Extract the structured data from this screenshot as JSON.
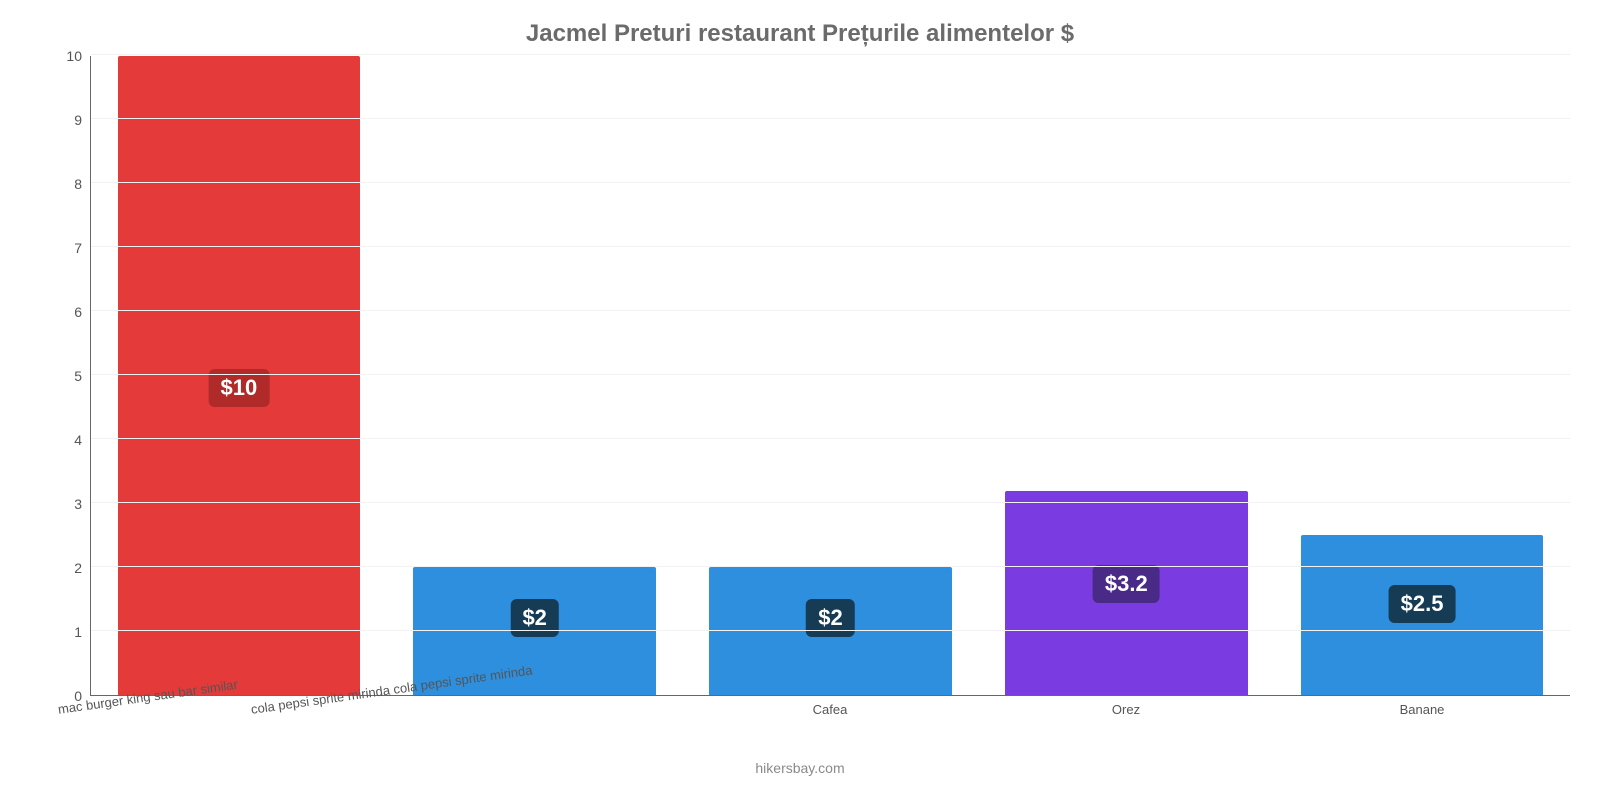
{
  "chart": {
    "type": "bar",
    "title": "Jacmel Preturi restaurant Prețurile alimentelor $",
    "title_fontsize": 24,
    "title_color": "#6b6b6b",
    "footer": "hikersbay.com",
    "footer_color": "#8a8a8a",
    "background_color": "#ffffff",
    "grid_color": "#f2f2f2",
    "axis_line_color": "#666666",
    "ylim": [
      0,
      10
    ],
    "yticks": [
      0,
      1,
      2,
      3,
      4,
      5,
      6,
      7,
      8,
      9,
      10
    ],
    "ytick_fontsize": 14,
    "ytick_color": "#555555",
    "xtick_fontsize": 13,
    "xtick_color": "#555555",
    "bar_width_pct": 82,
    "bar_label_fontsize": 22,
    "bar_label_bg": "#163b54",
    "bar_label_text_color": "#ffffff",
    "bar_label_bg_alt": "#4a2a87",
    "categories": [
      {
        "label": "mac burger king sau bar similar",
        "rotated": true
      },
      {
        "label": "cola pepsi sprite mirinda cola pepsi sprite mirinda",
        "rotated": true
      },
      {
        "label": "Cafea",
        "rotated": false
      },
      {
        "label": "Orez",
        "rotated": false
      },
      {
        "label": "Banane",
        "rotated": false
      }
    ],
    "series": [
      {
        "value": 10,
        "display": "$10",
        "color": "#e43a3a",
        "label_bg": "#b02a2a"
      },
      {
        "value": 2,
        "display": "$2",
        "color": "#2d8fde",
        "label_bg": "#163b54"
      },
      {
        "value": 2,
        "display": "$2",
        "color": "#2d8fde",
        "label_bg": "#163b54"
      },
      {
        "value": 3.2,
        "display": "$3.2",
        "color": "#7a3ce0",
        "label_bg": "#4a2a87"
      },
      {
        "value": 2.5,
        "display": "$2.5",
        "color": "#2d8fde",
        "label_bg": "#163b54"
      }
    ]
  }
}
